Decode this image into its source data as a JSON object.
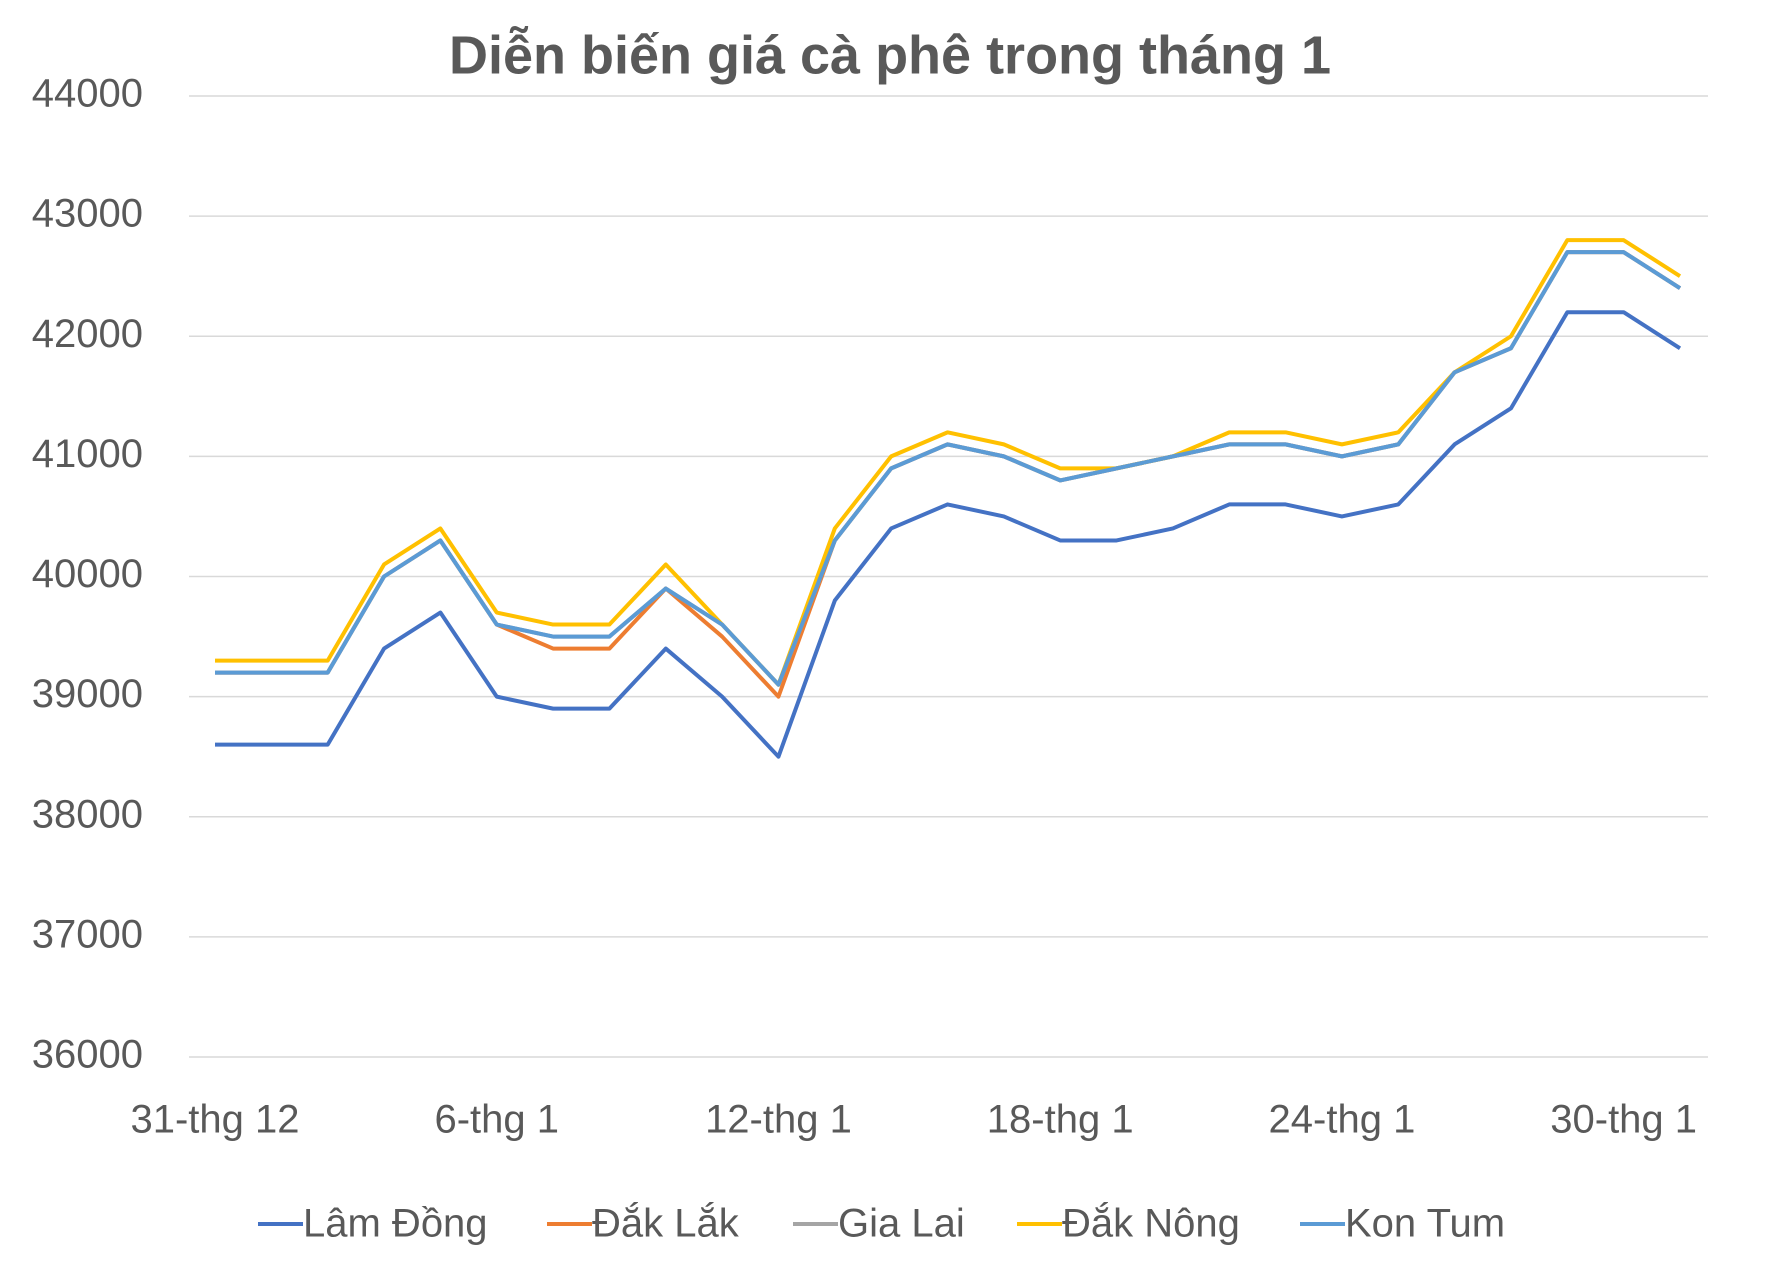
{
  "chart_data": {
    "type": "line",
    "title": "Diễn biến giá cà phê trong tháng 1",
    "categories": [
      "31-thg 12",
      null,
      null,
      null,
      null,
      "6-thg 1",
      null,
      null,
      null,
      null,
      "12-thg 1",
      null,
      null,
      null,
      null,
      "18-thg 1",
      null,
      null,
      null,
      null,
      "24-thg 1",
      null,
      null,
      null,
      null,
      "30-thg 1",
      null
    ],
    "series": [
      {
        "name": "Lâm Đồng",
        "color": "#4472c4",
        "values": [
          38600,
          38600,
          38600,
          39400,
          39700,
          39000,
          38900,
          38900,
          39400,
          39000,
          38500,
          39800,
          40400,
          40600,
          40500,
          40300,
          40300,
          40400,
          40600,
          40600,
          40500,
          40600,
          41100,
          41400,
          42200,
          42200,
          41900
        ]
      },
      {
        "name": "Đắk Lắk",
        "color": "#ed7d31",
        "values": [
          39200,
          39200,
          39200,
          40000,
          40300,
          39600,
          39400,
          39400,
          39900,
          39500,
          39000,
          40300,
          40900,
          41100,
          41000,
          40800,
          40900,
          41000,
          41100,
          41100,
          41000,
          41100,
          41700,
          41900,
          42700,
          42700,
          42400
        ]
      },
      {
        "name": "Gia Lai",
        "color": "#a5a5a5",
        "values": [
          39200,
          39200,
          39200,
          40000,
          40300,
          39600,
          39500,
          39500,
          39900,
          39600,
          39100,
          40300,
          40900,
          41100,
          41000,
          40800,
          40900,
          41000,
          41100,
          41100,
          41000,
          41100,
          41700,
          41900,
          42700,
          42700,
          42400
        ]
      },
      {
        "name": "Đắk Nông",
        "color": "#ffc000",
        "values": [
          39300,
          39300,
          39300,
          40100,
          40400,
          39700,
          39600,
          39600,
          40100,
          39600,
          39100,
          40400,
          41000,
          41200,
          41100,
          40900,
          40900,
          41000,
          41200,
          41200,
          41100,
          41200,
          41700,
          42000,
          42800,
          42800,
          42500
        ]
      },
      {
        "name": "Kon Tum",
        "color": "#5b9bd5",
        "values": [
          39200,
          39200,
          39200,
          40000,
          40300,
          39600,
          39500,
          39500,
          39900,
          39600,
          39100,
          40300,
          40900,
          41100,
          41000,
          40800,
          40900,
          41000,
          41100,
          41100,
          41000,
          41100,
          41700,
          41900,
          42700,
          42700,
          42400
        ]
      }
    ],
    "ylim": [
      36000,
      44000
    ],
    "yticks": [
      36000,
      37000,
      38000,
      39000,
      40000,
      41000,
      42000,
      43000,
      44000
    ],
    "grid": true,
    "legend": "bottom"
  }
}
